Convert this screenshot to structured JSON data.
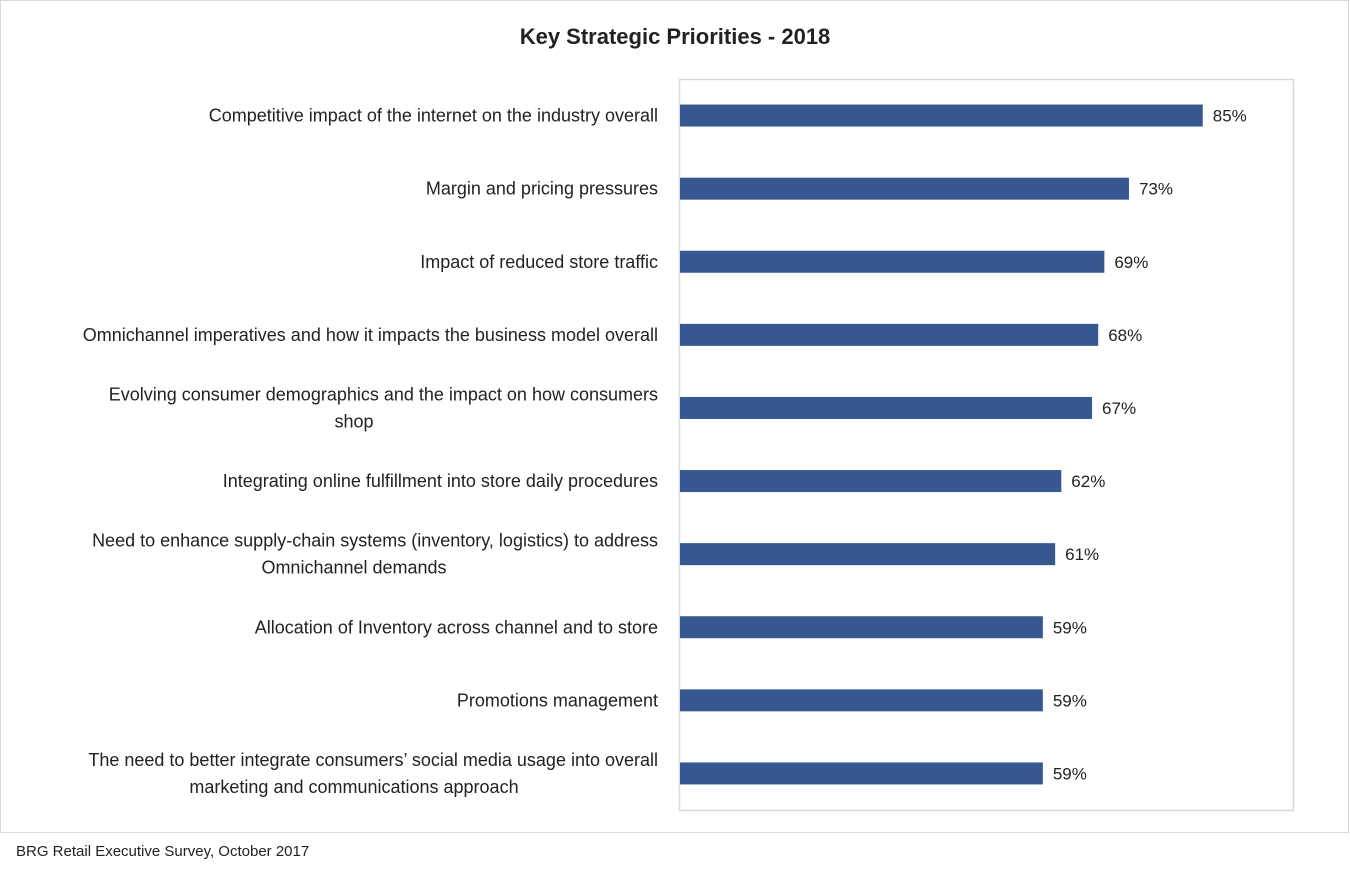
{
  "chart_data": {
    "type": "bar",
    "orientation": "horizontal",
    "title": "Key Strategic Priorities - 2018",
    "categories": [
      [
        "Competitive impact of the internet on the industry overall"
      ],
      [
        "Margin and pricing pressures"
      ],
      [
        "Impact of reduced store traffic"
      ],
      [
        "Omnichannel imperatives and how it impacts the business model overall"
      ],
      [
        "Evolving consumer demographics and the impact on how consumers",
        "shop"
      ],
      [
        "Integrating online fulfillment into store daily procedures"
      ],
      [
        "Need to enhance supply-chain systems (inventory, logistics) to address",
        "Omnichannel demands"
      ],
      [
        "Allocation of Inventory across channel and to store"
      ],
      [
        "Promotions management"
      ],
      [
        "The need to better integrate consumers’ social media usage into overall",
        "marketing and communications approach"
      ]
    ],
    "values": [
      85,
      73,
      69,
      68,
      67,
      62,
      61,
      59,
      59,
      59
    ],
    "data_labels": [
      "85%",
      "73%",
      "69%",
      "68%",
      "67%",
      "62%",
      "61%",
      "59%",
      "59%",
      "59%"
    ],
    "xlabel": "",
    "ylabel": "",
    "xlim": [
      0,
      100
    ],
    "grid": false,
    "legend": "none",
    "bar_color": "#375791"
  },
  "source": "BRG Retail Executive Survey, October 2017"
}
